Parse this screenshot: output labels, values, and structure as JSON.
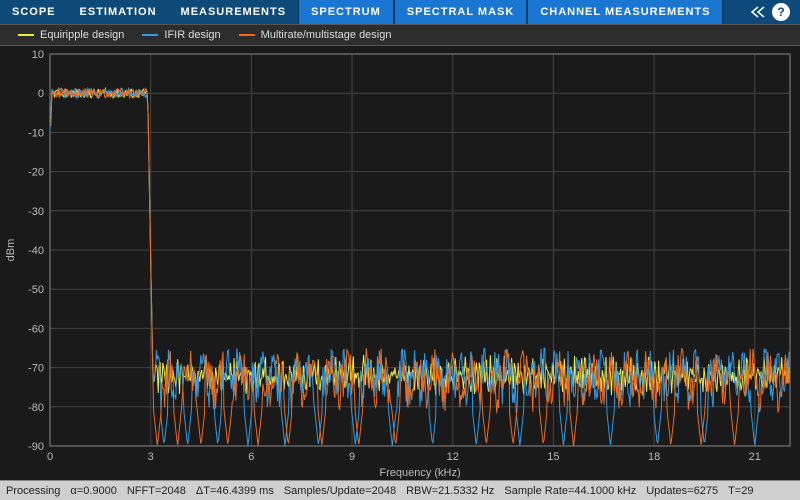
{
  "tabs": {
    "items": [
      {
        "label": "SCOPE",
        "active": false
      },
      {
        "label": "ESTIMATION",
        "active": false
      },
      {
        "label": "MEASUREMENTS",
        "active": false
      },
      {
        "label": "SPECTRUM",
        "active": true
      },
      {
        "label": "SPECTRAL MASK",
        "active": true
      },
      {
        "label": "CHANNEL MEASUREMENTS",
        "active": true
      }
    ],
    "help_glyph": "?"
  },
  "legend": {
    "items": [
      {
        "label": "Equiripple design",
        "color": "#f5e642"
      },
      {
        "label": "IFIR design",
        "color": "#2d9be6"
      },
      {
        "label": "Multirate/multistage design",
        "color": "#ed6b1f"
      }
    ]
  },
  "chart": {
    "type": "line",
    "background_color": "#1a1a1a",
    "grid_color": "#444444",
    "axis_color": "#888888",
    "text_color": "#bbbbbb",
    "xlabel": "Frequency (kHz)",
    "ylabel": "dBm",
    "xlim": [
      0,
      22.05
    ],
    "ylim": [
      -90,
      10
    ],
    "xtick_step": 3,
    "ytick_step": 10,
    "line_width": 1,
    "cutoff_khz": 3.0,
    "passband_db": 0,
    "series": [
      {
        "name": "Equiripple design",
        "color": "#f5e642",
        "stopband_mean_db": -72,
        "stopband_min_db": -80,
        "stopband_max_db": -65,
        "ripple_count": 200
      },
      {
        "name": "IFIR design",
        "color": "#2d9be6",
        "stopband_mean_db": -72,
        "stopband_min_db": -90,
        "stopband_max_db": -65,
        "ripple_count": 60,
        "notches_khz": [
          3.4,
          4.1,
          5.0,
          5.9,
          7.0,
          8.0,
          9.1,
          10.2,
          11.4,
          12.7,
          14.0,
          15.3,
          16.7,
          18.1,
          19.5,
          21.0
        ]
      },
      {
        "name": "Multirate/multistage design",
        "color": "#ed6b1f",
        "stopband_mean_db": -73,
        "stopband_min_db": -90,
        "stopband_max_db": -65,
        "ripple_count": 40,
        "notches_khz": [
          3.2,
          3.8,
          4.5,
          5.3,
          6.2,
          7.1,
          8.1,
          9.2,
          10.3,
          13.0,
          13.8,
          14.7,
          15.6,
          18.5,
          19.4,
          20.4
        ]
      }
    ]
  },
  "status": {
    "state": "Processing",
    "alpha": "α=0.9000",
    "nfft": "NFFT=2048",
    "dt": "ΔT=46.4399 ms",
    "spu": "Samples/Update=2048",
    "rbw": "RBW=21.5332 Hz",
    "srate": "Sample Rate=44.1000 kHz",
    "updates": "Updates=6275",
    "t": "T=29"
  }
}
